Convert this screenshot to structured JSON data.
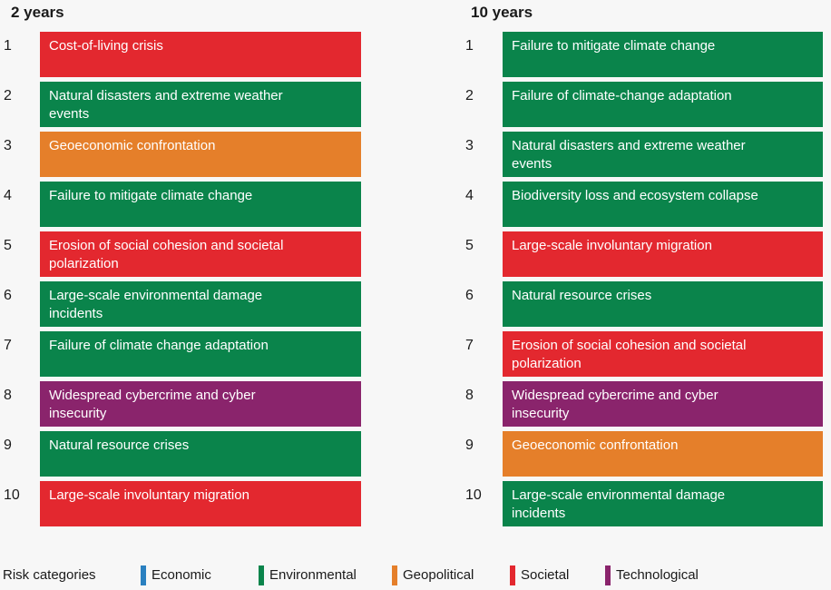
{
  "colors": {
    "Economic": "#2a80c0",
    "Environmental": "#0a844b",
    "Geopolitical": "#e57f2a",
    "Societal": "#e3282f",
    "Technological": "#8a246c"
  },
  "columns": [
    {
      "title": "2 years",
      "items": [
        {
          "rank": "1",
          "label": "Cost-of-living crisis",
          "category": "Societal"
        },
        {
          "rank": "2",
          "label": "Natural disasters and extreme weather events",
          "category": "Environmental"
        },
        {
          "rank": "3",
          "label": "Geoeconomic confrontation",
          "category": "Geopolitical"
        },
        {
          "rank": "4",
          "label": "Failure to mitigate climate change",
          "category": "Environmental"
        },
        {
          "rank": "5",
          "label": "Erosion of social cohesion and societal polarization",
          "category": "Societal"
        },
        {
          "rank": "6",
          "label": "Large-scale environmental damage incidents",
          "category": "Environmental"
        },
        {
          "rank": "7",
          "label": "Failure of climate change adaptation",
          "category": "Environmental"
        },
        {
          "rank": "8",
          "label": "Widespread cybercrime and cyber insecurity",
          "category": "Technological"
        },
        {
          "rank": "9",
          "label": "Natural resource crises",
          "category": "Environmental"
        },
        {
          "rank": "10",
          "label": "Large-scale involuntary migration",
          "category": "Societal"
        }
      ]
    },
    {
      "title": "10 years",
      "items": [
        {
          "rank": "1",
          "label": "Failure to mitigate climate change",
          "category": "Environmental"
        },
        {
          "rank": "2",
          "label": "Failure of climate-change adaptation",
          "category": "Environmental"
        },
        {
          "rank": "3",
          "label": "Natural disasters and extreme weather events",
          "category": "Environmental"
        },
        {
          "rank": "4",
          "label": "Biodiversity loss and ecosystem collapse",
          "category": "Environmental"
        },
        {
          "rank": "5",
          "label": "Large-scale involuntary migration",
          "category": "Societal"
        },
        {
          "rank": "6",
          "label": "Natural resource crises",
          "category": "Environmental"
        },
        {
          "rank": "7",
          "label": "Erosion of social cohesion and societal polarization",
          "category": "Societal"
        },
        {
          "rank": "8",
          "label": "Widespread cybercrime and cyber insecurity",
          "category": "Technological"
        },
        {
          "rank": "9",
          "label": "Geoeconomic confrontation",
          "category": "Geopolitical"
        },
        {
          "rank": "10",
          "label": "Large-scale environmental damage incidents",
          "category": "Environmental"
        }
      ]
    }
  ],
  "legend": {
    "title": "Risk categories",
    "items": [
      "Economic",
      "Environmental",
      "Geopolitical",
      "Societal",
      "Technological"
    ]
  }
}
